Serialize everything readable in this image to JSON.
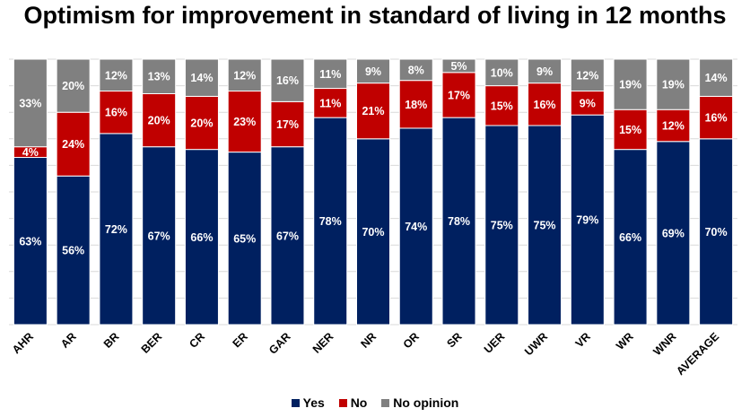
{
  "chart_data": {
    "type": "bar",
    "stacked": true,
    "percent_stacked": true,
    "title": "Optimism for improvement in standard of living in 12 months",
    "xlabel": "",
    "ylabel": "",
    "ylim": [
      0,
      100
    ],
    "grid": true,
    "legend_position": "bottom",
    "categories": [
      "AHR",
      "AR",
      "BR",
      "BER",
      "CR",
      "ER",
      "GAR",
      "NER",
      "NR",
      "OR",
      "SR",
      "UER",
      "UWR",
      "VR",
      "WR",
      "WNR",
      "AVERAGE"
    ],
    "series": [
      {
        "name": "Yes",
        "color": "#002060",
        "values": [
          63,
          56,
          72,
          67,
          66,
          65,
          67,
          78,
          70,
          74,
          78,
          75,
          75,
          79,
          66,
          69,
          70
        ]
      },
      {
        "name": "No",
        "color": "#C00000",
        "values": [
          4,
          24,
          16,
          20,
          20,
          23,
          17,
          11,
          21,
          18,
          17,
          15,
          16,
          9,
          15,
          12,
          16
        ]
      },
      {
        "name": "No opinion",
        "color": "#808080",
        "values": [
          33,
          20,
          12,
          13,
          14,
          12,
          16,
          11,
          9,
          8,
          5,
          10,
          9,
          12,
          19,
          19,
          14
        ]
      }
    ],
    "value_suffix": "%"
  }
}
